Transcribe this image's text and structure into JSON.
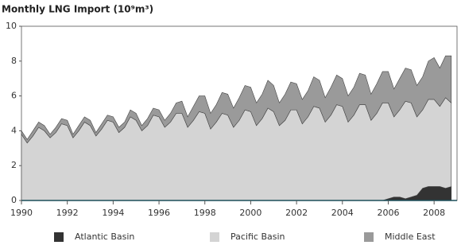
{
  "chart_data": {
    "type": "stacked_area",
    "title": "Monthly LNG Import (10⁹m³)",
    "x": [
      1990,
      1990.25,
      1990.5,
      1990.75,
      1991,
      1991.25,
      1991.5,
      1991.75,
      1992,
      1992.25,
      1992.5,
      1992.75,
      1993,
      1993.25,
      1993.5,
      1993.75,
      1994,
      1994.25,
      1994.5,
      1994.75,
      1995,
      1995.25,
      1995.5,
      1995.75,
      1996,
      1996.25,
      1996.5,
      1996.75,
      1997,
      1997.25,
      1997.5,
      1997.75,
      1998,
      1998.25,
      1998.5,
      1998.75,
      1999,
      1999.25,
      1999.5,
      1999.75,
      2000,
      2000.25,
      2000.5,
      2000.75,
      2001,
      2001.25,
      2001.5,
      2001.75,
      2002,
      2002.25,
      2002.5,
      2002.75,
      2003,
      2003.25,
      2003.5,
      2003.75,
      2004,
      2004.25,
      2004.5,
      2004.75,
      2005,
      2005.25,
      2005.5,
      2005.75,
      2006,
      2006.25,
      2006.5,
      2006.75,
      2007,
      2007.25,
      2007.5,
      2007.75,
      2008,
      2008.25,
      2008.5,
      2008.75
    ],
    "series": [
      {
        "name": "Atlantic Basin",
        "color": "#333333",
        "values": [
          0,
          0,
          0,
          0,
          0,
          0,
          0,
          0,
          0,
          0,
          0,
          0,
          0,
          0,
          0,
          0,
          0,
          0,
          0,
          0,
          0,
          0,
          0,
          0,
          0,
          0,
          0,
          0,
          0,
          0,
          0,
          0,
          0,
          0,
          0,
          0,
          0,
          0,
          0,
          0,
          0,
          0,
          0,
          0,
          0,
          0,
          0,
          0,
          0,
          0,
          0,
          0,
          0,
          0,
          0,
          0,
          0,
          0,
          0,
          0,
          0,
          0,
          0,
          0,
          0.1,
          0.2,
          0.2,
          0.1,
          0.2,
          0.3,
          0.7,
          0.8,
          0.8,
          0.8,
          0.7,
          0.8
        ]
      },
      {
        "name": "Pacific Basin",
        "color": "#d4d4d4",
        "values": [
          3.8,
          3.3,
          3.7,
          4.2,
          4.0,
          3.6,
          3.9,
          4.4,
          4.3,
          3.6,
          4.0,
          4.5,
          4.3,
          3.7,
          4.1,
          4.6,
          4.5,
          3.9,
          4.2,
          4.8,
          4.6,
          4.0,
          4.3,
          4.9,
          4.8,
          4.2,
          4.5,
          5.0,
          5.0,
          4.2,
          4.6,
          5.1,
          5.0,
          4.1,
          4.5,
          5.0,
          4.9,
          4.2,
          4.6,
          5.2,
          5.1,
          4.3,
          4.7,
          5.3,
          5.1,
          4.3,
          4.6,
          5.2,
          5.2,
          4.4,
          4.8,
          5.4,
          5.3,
          4.5,
          4.9,
          5.5,
          5.4,
          4.5,
          4.9,
          5.5,
          5.5,
          4.6,
          5.0,
          5.6,
          5.5,
          4.6,
          5.0,
          5.6,
          5.4,
          4.5,
          4.5,
          5.0,
          5.0,
          4.6,
          5.2,
          4.8
        ]
      },
      {
        "name": "Middle East",
        "color": "#9a9a9a",
        "values": [
          0.2,
          0.2,
          0.3,
          0.3,
          0.3,
          0.2,
          0.3,
          0.3,
          0.3,
          0.2,
          0.3,
          0.3,
          0.3,
          0.2,
          0.3,
          0.3,
          0.3,
          0.3,
          0.3,
          0.4,
          0.4,
          0.3,
          0.4,
          0.4,
          0.4,
          0.4,
          0.5,
          0.6,
          0.7,
          0.6,
          0.8,
          0.9,
          1.0,
          0.9,
          1.0,
          1.2,
          1.2,
          1.1,
          1.3,
          1.4,
          1.4,
          1.3,
          1.4,
          1.6,
          1.5,
          1.3,
          1.5,
          1.6,
          1.5,
          1.4,
          1.5,
          1.7,
          1.6,
          1.4,
          1.6,
          1.7,
          1.6,
          1.5,
          1.6,
          1.8,
          1.7,
          1.5,
          1.7,
          1.8,
          1.8,
          1.6,
          1.8,
          1.9,
          1.9,
          1.8,
          1.9,
          2.2,
          2.4,
          2.2,
          2.4,
          2.7
        ]
      }
    ],
    "xlim": [
      1990,
      2009
    ],
    "xticks": [
      1990,
      1992,
      1994,
      1996,
      1998,
      2000,
      2002,
      2004,
      2006,
      2008
    ],
    "ylim": [
      0,
      10
    ],
    "yticks": [
      0,
      2,
      4,
      6,
      8,
      10
    ],
    "legend": "bottom"
  }
}
